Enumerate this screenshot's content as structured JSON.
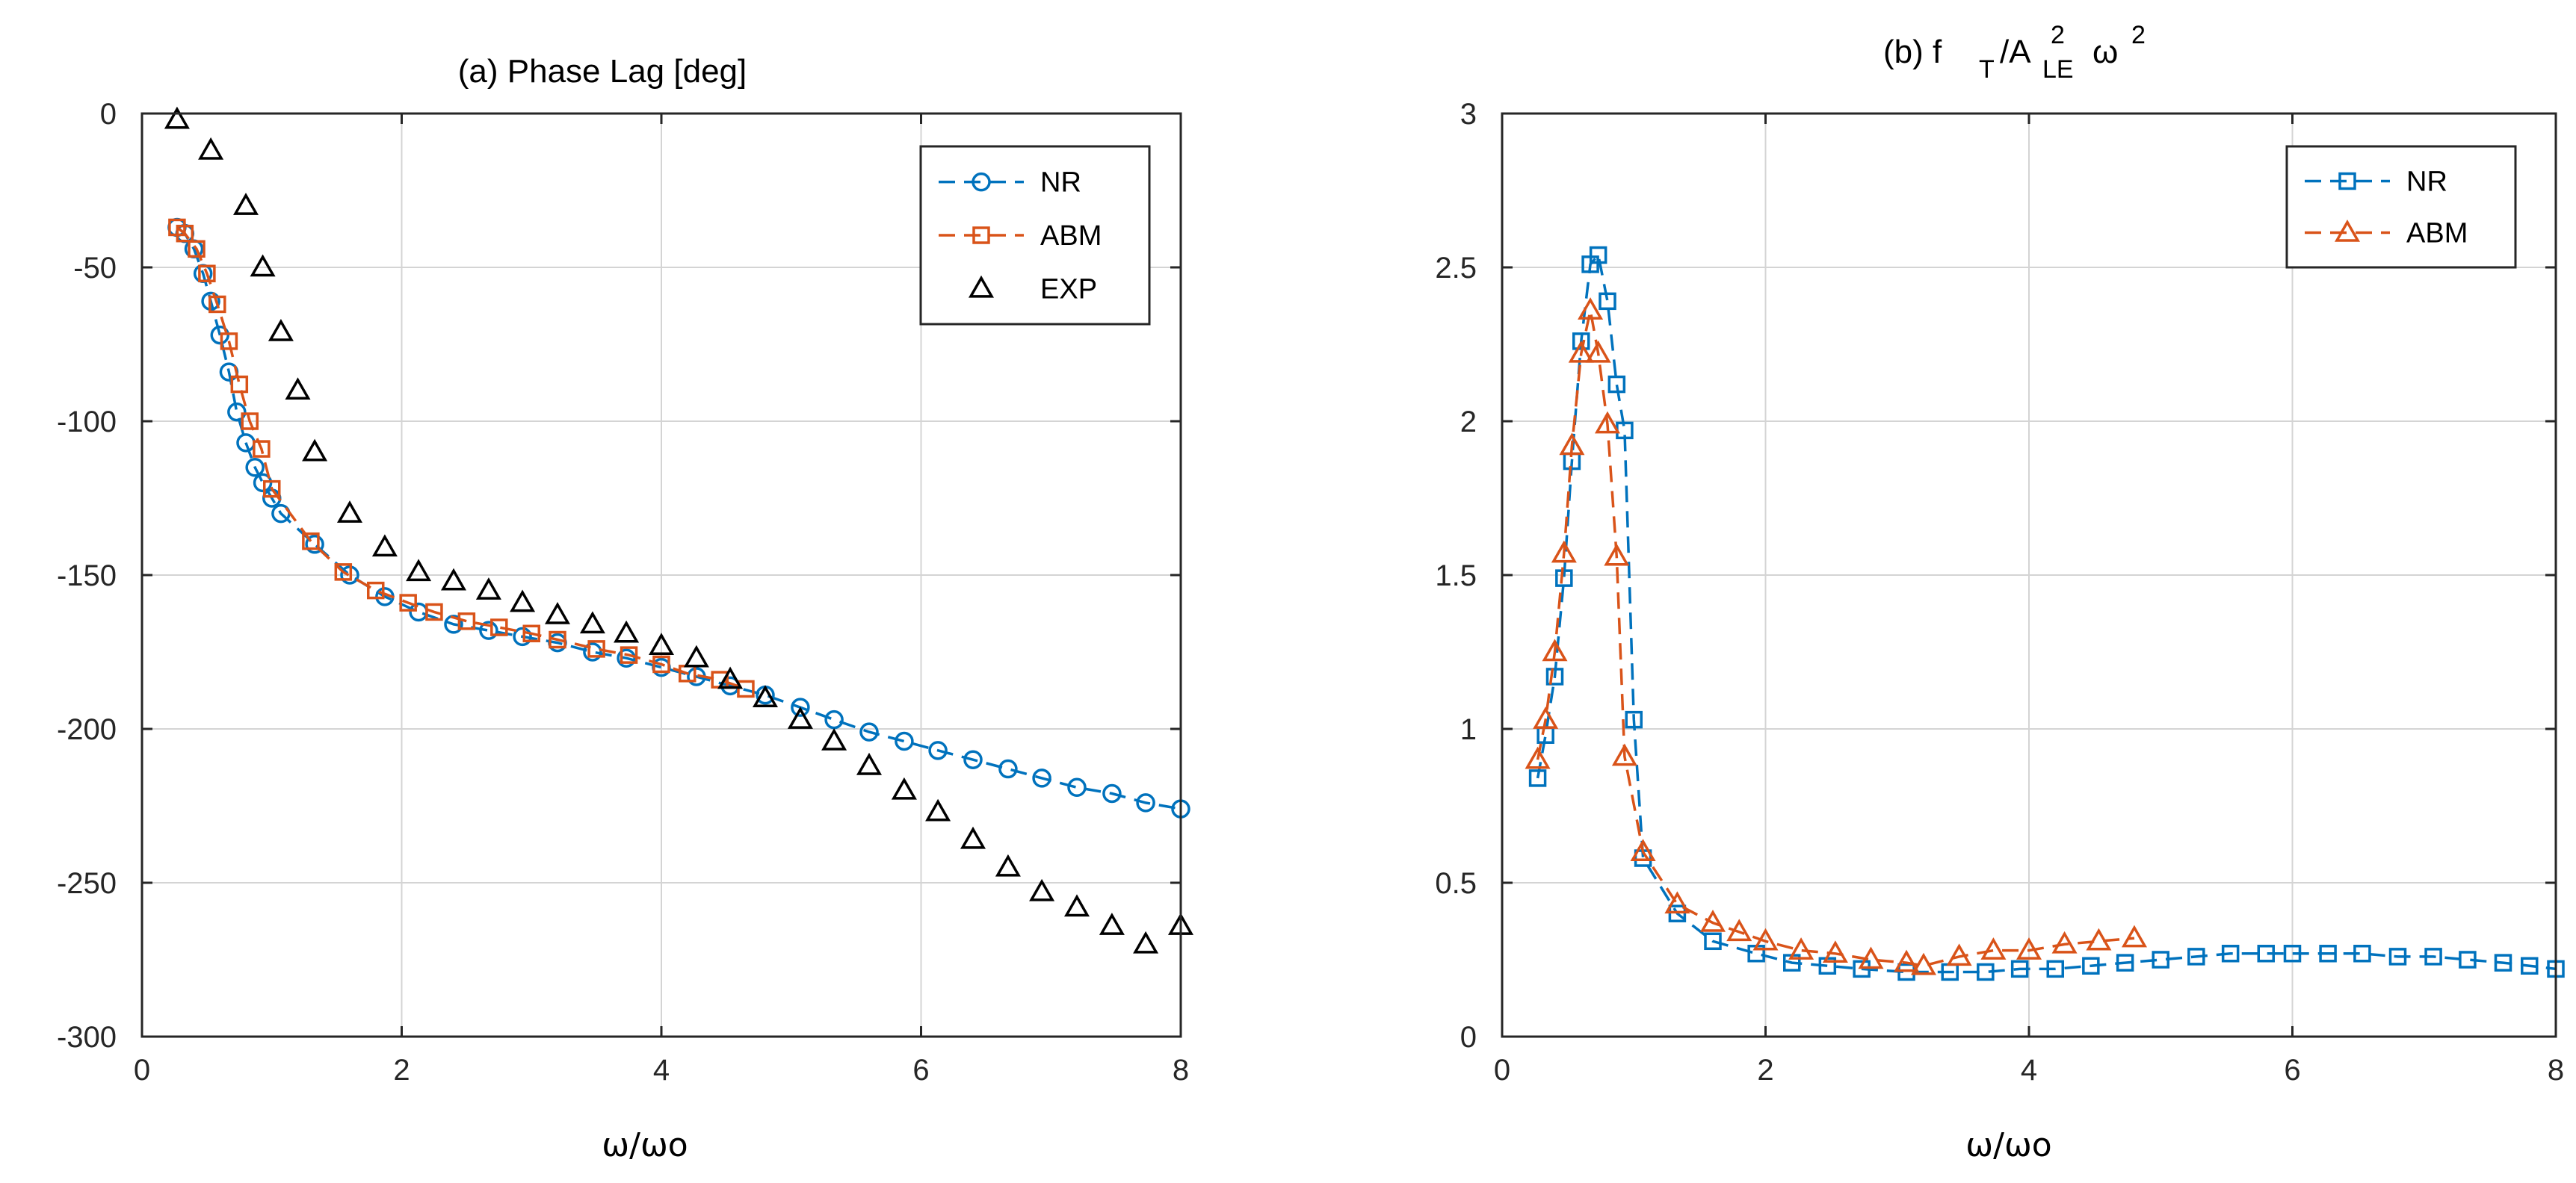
{
  "chart_data": [
    {
      "type": "line",
      "title": "(a) Phase Lag [deg]",
      "xlabel": "ω/ωo",
      "ylabel": "",
      "xlim": [
        0,
        8
      ],
      "ylim": [
        -300,
        0
      ],
      "xticks": [
        "0",
        "2",
        "4",
        "6",
        "8"
      ],
      "yticks": [
        "0",
        "-50",
        "-100",
        "-150",
        "-200",
        "-250",
        "-300"
      ],
      "grid": true,
      "legend_position": "top-right",
      "series": [
        {
          "name": "NR",
          "color": "#0072BD",
          "marker": "circle",
          "line": "dashed",
          "x": [
            0.27,
            0.33,
            0.4,
            0.47,
            0.53,
            0.6,
            0.67,
            0.73,
            0.8,
            0.87,
            0.93,
            1.0,
            1.07,
            1.33,
            1.6,
            1.87,
            2.13,
            2.4,
            2.67,
            2.93,
            3.2,
            3.47,
            3.73,
            4.0,
            4.27,
            4.53,
            4.8,
            5.07,
            5.33,
            5.6,
            5.87,
            6.13,
            6.4,
            6.67,
            6.93,
            7.2,
            7.47,
            7.73,
            8.0
          ],
          "y": [
            -37,
            -39,
            -44,
            -52,
            -61,
            -72,
            -84,
            -97,
            -107,
            -115,
            -120,
            -125,
            -130,
            -140,
            -150,
            -157,
            -162,
            -166,
            -168,
            -170,
            -172,
            -175,
            -177,
            -180,
            -183,
            -186,
            -189,
            -193,
            -197,
            -201,
            -204,
            -207,
            -210,
            -213,
            -216,
            -219,
            -221,
            -224,
            -226
          ]
        },
        {
          "name": "ABM",
          "color": "#D95319",
          "marker": "square",
          "line": "dashed",
          "x": [
            0.27,
            0.33,
            0.42,
            0.5,
            0.58,
            0.67,
            0.75,
            0.83,
            0.92,
            1.0,
            1.3,
            1.55,
            1.8,
            2.05,
            2.25,
            2.5,
            2.75,
            3.0,
            3.2,
            3.5,
            3.75,
            4.0,
            4.2,
            4.45,
            4.65
          ],
          "y": [
            -37,
            -39,
            -44,
            -52,
            -62,
            -74,
            -88,
            -100,
            -109,
            -122,
            -139,
            -149,
            -155,
            -159,
            -162,
            -165,
            -167,
            -169,
            -171,
            -174,
            -176,
            -179,
            -182,
            -184,
            -187
          ]
        },
        {
          "name": "EXP",
          "color": "#000000",
          "marker": "triangle",
          "line": "none",
          "x": [
            0.27,
            0.53,
            0.8,
            0.93,
            1.07,
            1.2,
            1.33,
            1.6,
            1.87,
            2.13,
            2.4,
            2.67,
            2.93,
            3.2,
            3.47,
            3.73,
            4.0,
            4.27,
            4.53,
            4.8,
            5.07,
            5.33,
            5.6,
            5.87,
            6.13,
            6.4,
            6.67,
            6.93,
            7.2,
            7.47,
            7.73,
            8.0
          ],
          "y": [
            -2,
            -12,
            -30,
            -50,
            -71,
            -90,
            -110,
            -130,
            -141,
            -149,
            -152,
            -155,
            -159,
            -163,
            -166,
            -169,
            -173,
            -177,
            -184,
            -190,
            -197,
            -204,
            -212,
            -220,
            -227,
            -236,
            -245,
            -253,
            -258,
            -264,
            -270,
            -264
          ]
        }
      ]
    },
    {
      "type": "line",
      "title": "(b) f T /A LE 2 ω 2",
      "title_parts": {
        "a": "(b) f",
        "b": "T",
        "c": "/A",
        "d": "2",
        "e": "LE",
        "f": "ω",
        "g": "2"
      },
      "xlabel": "ω/ωo",
      "ylabel": "",
      "xlim": [
        0,
        8
      ],
      "ylim": [
        0,
        3
      ],
      "xticks": [
        "0",
        "2",
        "4",
        "6",
        "8"
      ],
      "yticks": [
        "0",
        "0.5",
        "1",
        "1.5",
        "2",
        "2.5",
        "3"
      ],
      "grid": true,
      "legend_position": "top-right",
      "series": [
        {
          "name": "NR",
          "color": "#0072BD",
          "marker": "square",
          "line": "dashed",
          "x": [
            0.27,
            0.33,
            0.4,
            0.47,
            0.53,
            0.6,
            0.67,
            0.73,
            0.8,
            0.87,
            0.93,
            1.0,
            1.07,
            1.33,
            1.6,
            1.93,
            2.2,
            2.47,
            2.73,
            3.07,
            3.4,
            3.67,
            3.93,
            4.2,
            4.47,
            4.73,
            5.0,
            5.27,
            5.53,
            5.8,
            6.0,
            6.27,
            6.53,
            6.8,
            7.07,
            7.33,
            7.6,
            7.8,
            8.0
          ],
          "y": [
            0.84,
            0.98,
            1.17,
            1.49,
            1.87,
            2.26,
            2.51,
            2.54,
            2.39,
            2.12,
            1.97,
            1.03,
            0.58,
            0.4,
            0.31,
            0.27,
            0.24,
            0.23,
            0.22,
            0.21,
            0.21,
            0.21,
            0.22,
            0.22,
            0.23,
            0.24,
            0.25,
            0.26,
            0.27,
            0.27,
            0.27,
            0.27,
            0.27,
            0.26,
            0.26,
            0.25,
            0.24,
            0.23,
            0.22
          ]
        },
        {
          "name": "ABM",
          "color": "#D95319",
          "marker": "triangle",
          "line": "dashed",
          "x": [
            0.27,
            0.33,
            0.4,
            0.47,
            0.53,
            0.6,
            0.67,
            0.73,
            0.8,
            0.87,
            0.93,
            1.07,
            1.33,
            1.6,
            1.8,
            2.0,
            2.27,
            2.53,
            2.8,
            3.07,
            3.2,
            3.47,
            3.73,
            4.0,
            4.27,
            4.53,
            4.8
          ],
          "y": [
            0.9,
            1.03,
            1.25,
            1.57,
            1.92,
            2.22,
            2.36,
            2.22,
            1.99,
            1.56,
            0.91,
            0.6,
            0.43,
            0.37,
            0.34,
            0.31,
            0.28,
            0.27,
            0.25,
            0.24,
            0.23,
            0.26,
            0.28,
            0.28,
            0.3,
            0.31,
            0.32
          ]
        }
      ]
    }
  ]
}
